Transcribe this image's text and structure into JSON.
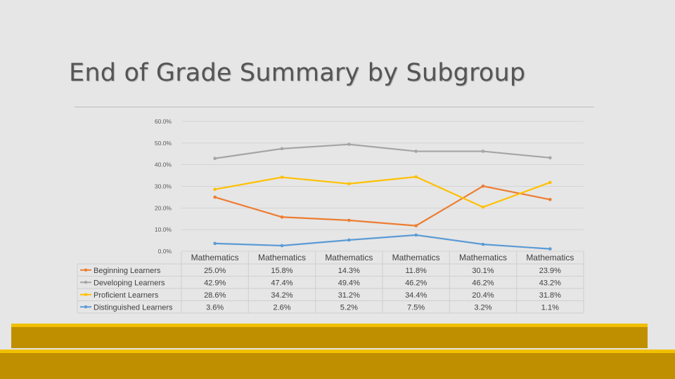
{
  "slide": {
    "title": "End of Grade Summary by Subgroup"
  },
  "chart_data": {
    "type": "line",
    "categories": [
      "Mathematics",
      "Mathematics",
      "Mathematics",
      "Mathematics",
      "Mathematics",
      "Mathematics"
    ],
    "ylim": [
      0,
      60
    ],
    "yticks": [
      0,
      10,
      20,
      30,
      40,
      50,
      60
    ],
    "ytick_labels": [
      "0.0%",
      "10.0%",
      "20.0%",
      "30.0%",
      "40.0%",
      "50.0%",
      "60.0%"
    ],
    "grid": true,
    "legend": "data-table-left",
    "series": [
      {
        "name": "Beginning Learners",
        "color": "#ed7d31",
        "values": [
          25.0,
          15.8,
          14.3,
          11.8,
          30.1,
          23.9
        ],
        "labels": [
          "25.0%",
          "15.8%",
          "14.3%",
          "11.8%",
          "30.1%",
          "23.9%"
        ]
      },
      {
        "name": "Developing Learners",
        "color": "#a5a5a5",
        "values": [
          42.9,
          47.4,
          49.4,
          46.2,
          46.2,
          43.2
        ],
        "labels": [
          "42.9%",
          "47.4%",
          "49.4%",
          "46.2%",
          "46.2%",
          "43.2%"
        ]
      },
      {
        "name": "Proficient Learners",
        "color": "#ffc000",
        "values": [
          28.6,
          34.2,
          31.2,
          34.4,
          20.4,
          31.8
        ],
        "labels": [
          "28.6%",
          "34.2%",
          "31.2%",
          "34.4%",
          "20.4%",
          "31.8%"
        ]
      },
      {
        "name": "Distinguished Learners",
        "color": "#5b9bd5",
        "values": [
          3.6,
          2.6,
          5.2,
          7.5,
          3.2,
          1.1
        ],
        "labels": [
          "3.6%",
          "2.6%",
          "5.2%",
          "7.5%",
          "3.2%",
          "1.1%"
        ]
      }
    ]
  }
}
